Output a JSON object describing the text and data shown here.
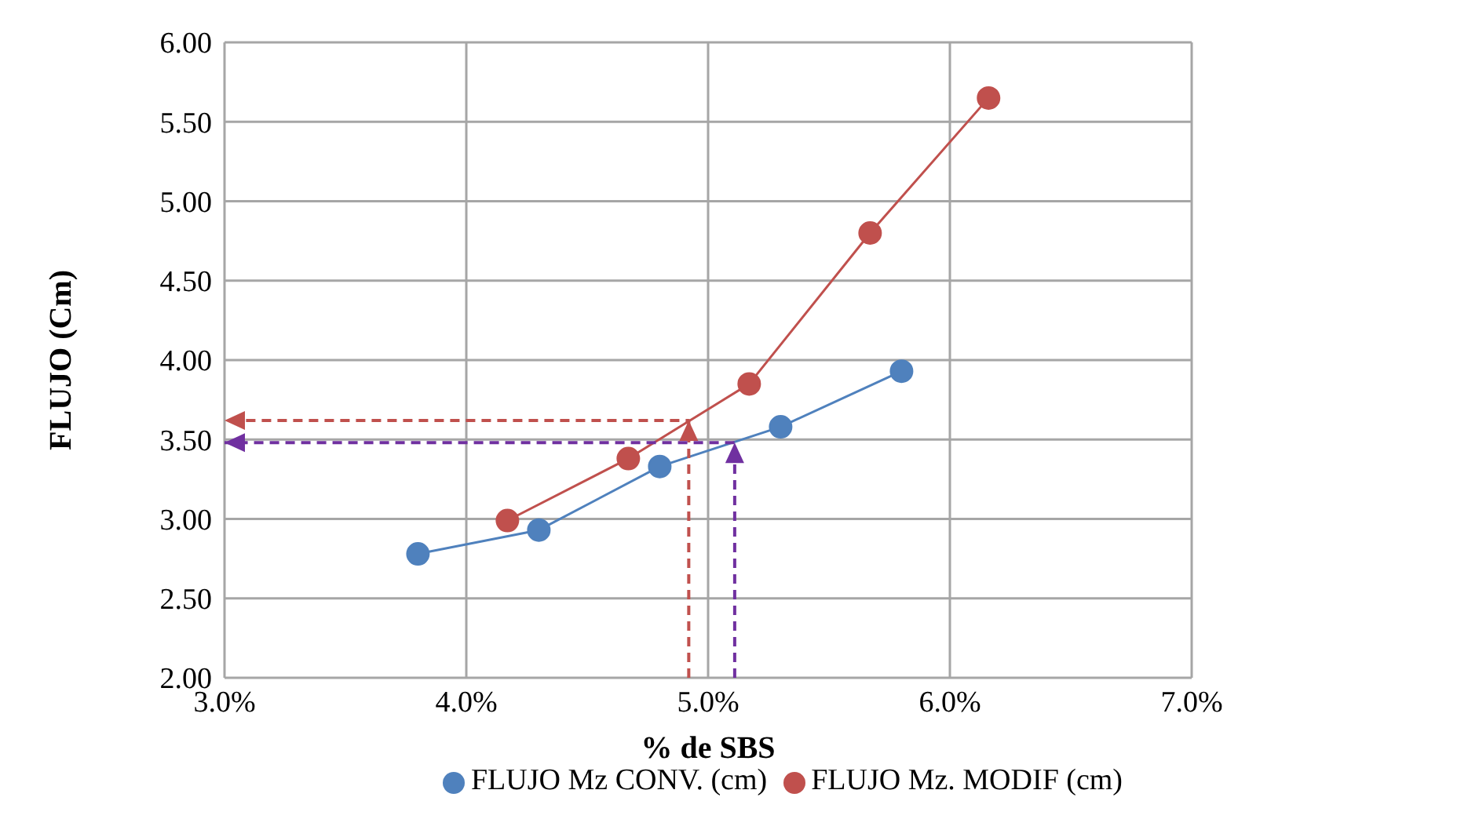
{
  "chart_data": {
    "type": "line",
    "xlabel": "% de SBS",
    "ylabel": "FLUJO (Cm)",
    "xlim": [
      3,
      7
    ],
    "xticks": [
      {
        "value": 3,
        "label": "3.0%"
      },
      {
        "value": 4,
        "label": "4.0%"
      },
      {
        "value": 5,
        "label": "5.0%"
      },
      {
        "value": 6,
        "label": "6.0%"
      },
      {
        "value": 7,
        "label": "7.0%"
      }
    ],
    "ylim": [
      2,
      6
    ],
    "yticks": [
      {
        "value": 2,
        "label": "2.00"
      },
      {
        "value": 2.5,
        "label": "2.50"
      },
      {
        "value": 3,
        "label": "3.00"
      },
      {
        "value": 3.5,
        "label": "3.50"
      },
      {
        "value": 4,
        "label": "4.00"
      },
      {
        "value": 4.5,
        "label": "4.50"
      },
      {
        "value": 5,
        "label": "5.00"
      },
      {
        "value": 5.5,
        "label": "5.50"
      },
      {
        "value": 6,
        "label": "6.00"
      }
    ],
    "grid": true,
    "legend": "bottom",
    "marker": "circle",
    "line_style": "solid",
    "series": [
      {
        "name": "FLUJO Mz CONV. (cm)",
        "color": "#4f81bd",
        "x": [
          3.8,
          4.3,
          4.8,
          5.3,
          5.8
        ],
        "values": [
          2.78,
          2.93,
          3.33,
          3.58,
          3.93
        ]
      },
      {
        "name": "FLUJO Mz. MODIF (cm)",
        "color": "#c0504d",
        "x": [
          4.17,
          4.67,
          5.17,
          5.67,
          6.16
        ],
        "values": [
          2.99,
          3.38,
          3.85,
          4.8,
          5.65
        ]
      },
      {
        "color": "#c0504d",
        "x": [
          4.92,
          4.92,
          3.0
        ],
        "values": [
          2.0,
          3.62,
          3.62
        ],
        "marker": "none",
        "line_style": "dashed"
      },
      {
        "color": "#7030a0",
        "x": [
          5.11,
          5.11,
          3.0
        ],
        "values": [
          2.0,
          3.48,
          3.48
        ],
        "marker": "none",
        "line_style": "dashed"
      }
    ]
  }
}
